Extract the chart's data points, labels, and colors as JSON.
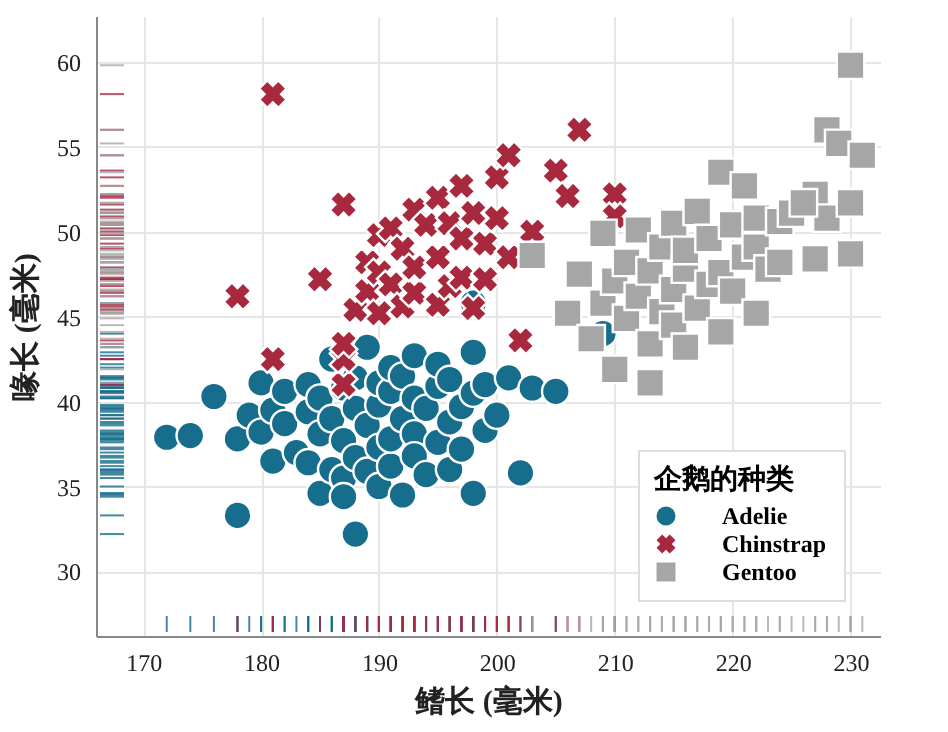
{
  "chart_data": {
    "type": "scatter",
    "xlabel": "鳍长 (毫米)",
    "ylabel": "喙长 (毫米)",
    "legend_title": "企鹅的种类",
    "legend": "bottom right",
    "grid": true,
    "xlim": [
      166,
      232.5
    ],
    "ylim": [
      26.2,
      62.7
    ],
    "xticks": [
      170,
      180,
      190,
      200,
      210,
      220,
      230
    ],
    "yticks": [
      30,
      35,
      40,
      45,
      50,
      55,
      60
    ],
    "series": [
      {
        "name": "Adelie",
        "color": "#176d8c",
        "marker": "circle",
        "x": [
          172,
          174,
          176,
          178,
          178,
          179,
          180,
          180,
          181,
          181,
          182,
          182,
          183,
          184,
          184,
          184,
          185,
          185,
          185,
          186,
          186,
          186,
          187,
          187,
          187,
          187,
          188,
          188,
          188,
          188,
          189,
          189,
          189,
          190,
          190,
          190,
          190,
          191,
          191,
          191,
          191,
          192,
          192,
          192,
          193,
          193,
          193,
          193,
          194,
          194,
          195,
          195,
          195,
          196,
          196,
          196,
          197,
          197,
          198,
          198,
          198,
          198,
          199,
          199,
          200,
          201,
          202,
          203,
          205,
          209
        ],
        "values": [
          37.9,
          38,
          40.3,
          33.3,
          37.8,
          39.2,
          38.2,
          41.1,
          36.5,
          39.5,
          38.7,
          40.6,
          37,
          39.4,
          41,
          36.4,
          38.1,
          34.6,
          40.2,
          36,
          39,
          42.5,
          35.5,
          37.7,
          40.8,
          34.4,
          39.6,
          36.7,
          32.2,
          41.4,
          35.9,
          38.6,
          43.2,
          37.3,
          39.8,
          41.1,
          35,
          36.2,
          40.6,
          42,
          37.8,
          39,
          34.5,
          41.5,
          38.1,
          40.2,
          36.8,
          42.7,
          35.7,
          39.6,
          37.6,
          40.9,
          42.2,
          38.8,
          36,
          41.3,
          39.7,
          37.2,
          40.5,
          42.9,
          45.8,
          34.6,
          38.3,
          41,
          39.2,
          41.4,
          35.8,
          40.8,
          40.6,
          44
        ]
      },
      {
        "name": "Chinstrap",
        "color": "#a8283e",
        "marker": "cross",
        "x": [
          181,
          178,
          181,
          187,
          187,
          187,
          185,
          187,
          188,
          189,
          189,
          190,
          190,
          190,
          191,
          191,
          192,
          192,
          193,
          193,
          193,
          194,
          195,
          195,
          195,
          196,
          196,
          197,
          197,
          197,
          198,
          198,
          199,
          199,
          200,
          200,
          201,
          201,
          202,
          203,
          205,
          206,
          207,
          210,
          210
        ],
        "values": [
          58.1,
          46.2,
          42.5,
          41,
          42.5,
          43.4,
          47.2,
          51.6,
          45.4,
          46.5,
          48.2,
          47.6,
          45.2,
          49.8,
          46.9,
          50.2,
          45.6,
          49,
          46.4,
          47.9,
          51.3,
          50.4,
          45.7,
          48.5,
          52,
          46.8,
          50.5,
          47.3,
          49.6,
          52.7,
          45.5,
          51.1,
          49.3,
          47.2,
          50.8,
          53.2,
          54.5,
          48.5,
          43.6,
          50,
          53.6,
          52.1,
          56,
          52.2,
          50.9
        ]
      },
      {
        "name": "Gentoo",
        "color": "#a6a6a6",
        "marker": "square",
        "x": [
          203,
          206,
          207,
          208,
          209,
          209,
          210,
          210,
          211,
          211,
          212,
          212,
          213,
          213,
          213,
          214,
          214,
          215,
          215,
          215,
          216,
          216,
          216,
          217,
          217,
          218,
          218,
          219,
          219,
          219,
          220,
          220,
          221,
          221,
          222,
          222,
          222,
          223,
          224,
          224,
          225,
          227,
          227,
          228,
          228,
          229,
          230,
          230,
          230,
          231,
          226
        ],
        "values": [
          48.6,
          45.2,
          47.5,
          43.7,
          45.8,
          49.9,
          41.9,
          47.1,
          44.9,
          48.2,
          46.2,
          50.1,
          41.1,
          43.4,
          47.7,
          45.3,
          49.1,
          44.5,
          46.6,
          50.5,
          43.2,
          47.8,
          48.9,
          45.5,
          51.2,
          46.9,
          49.6,
          53.5,
          44.1,
          47.6,
          46.5,
          50.4,
          52.7,
          48.5,
          45.2,
          49.1,
          50.8,
          47.8,
          50.6,
          48.2,
          51.1,
          52.2,
          48.4,
          56,
          50.8,
          55.2,
          59.8,
          51.7,
          48.7,
          54.5,
          51.7
        ]
      }
    ]
  }
}
